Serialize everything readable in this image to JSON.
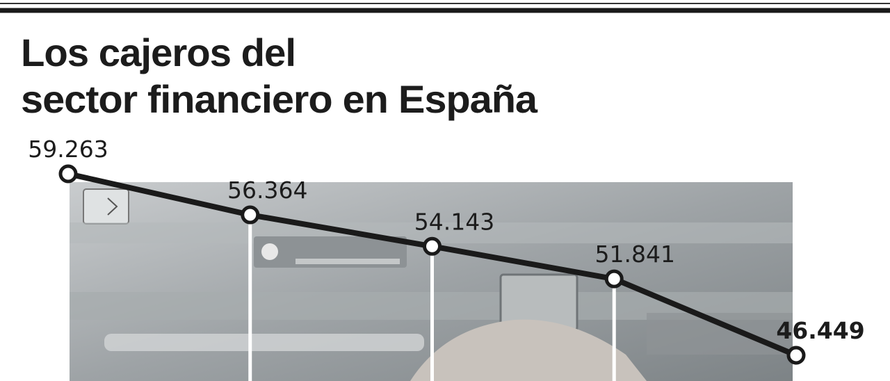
{
  "chart_data": {
    "type": "line",
    "title": [
      "Los cajeros del",
      "sector financiero en España"
    ],
    "values": [
      59263,
      56364,
      54143,
      51841,
      46449
    ],
    "value_labels": [
      "59.263",
      "56.364",
      "54.143",
      "51.841",
      "46.449"
    ],
    "color": "#1a1a1a"
  }
}
